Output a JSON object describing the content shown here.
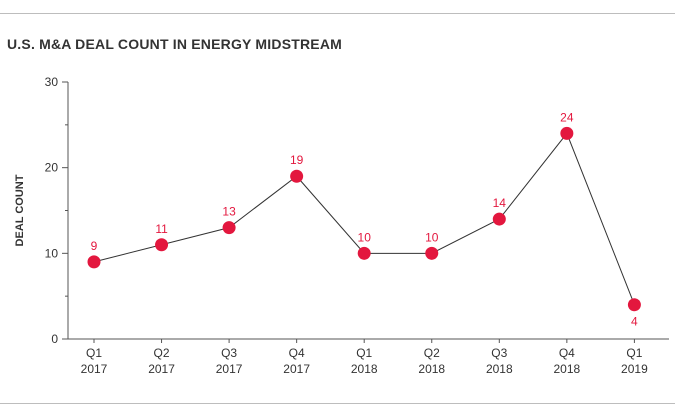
{
  "chart_data": {
    "type": "line",
    "title": "U.S. M&A DEAL COUNT IN ENERGY MIDSTREAM",
    "ylabel": "DEAL COUNT",
    "xlabel": "",
    "categories": [
      [
        "Q1",
        "2017"
      ],
      [
        "Q2",
        "2017"
      ],
      [
        "Q3",
        "2017"
      ],
      [
        "Q4",
        "2017"
      ],
      [
        "Q1",
        "2018"
      ],
      [
        "Q2",
        "2018"
      ],
      [
        "Q3",
        "2018"
      ],
      [
        "Q4",
        "2018"
      ],
      [
        "Q1",
        "2019"
      ]
    ],
    "values": [
      9,
      11,
      13,
      19,
      10,
      10,
      14,
      24,
      4
    ],
    "ylim": [
      0,
      30
    ],
    "yticks": [
      0,
      10,
      20,
      30
    ],
    "grid": false,
    "colors": {
      "marker": "#e3173e",
      "line": "#333333",
      "label": "#e3173e"
    }
  }
}
